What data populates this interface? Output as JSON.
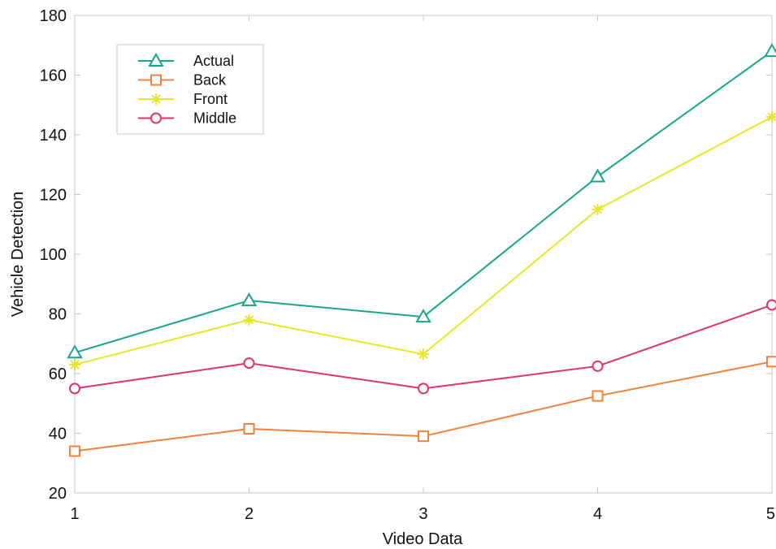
{
  "chart_data": {
    "type": "line",
    "title": "",
    "xlabel": "Video Data",
    "ylabel": "Vehicle Detection",
    "x": [
      1,
      2,
      3,
      4,
      5
    ],
    "xlim": [
      1,
      5
    ],
    "ylim": [
      20,
      180
    ],
    "xticks": [
      "1",
      "2",
      "3",
      "4",
      "5"
    ],
    "yticks": [
      "20",
      "40",
      "60",
      "80",
      "100",
      "120",
      "140",
      "160",
      "180"
    ],
    "grid": false,
    "legend_position": "top-left",
    "series": [
      {
        "name": "Actual",
        "color": "#1aa68a",
        "marker": "triangle",
        "values": [
          67,
          84.5,
          79,
          126,
          168
        ]
      },
      {
        "name": "Back",
        "color": "#f0823e",
        "marker": "square",
        "values": [
          34,
          41.5,
          39,
          52.5,
          64
        ]
      },
      {
        "name": "Front",
        "color": "#e6e62a",
        "marker": "star",
        "values": [
          63,
          78,
          66.5,
          115,
          146
        ]
      },
      {
        "name": "Middle",
        "color": "#e0336e",
        "marker": "circle",
        "values": [
          55,
          63.5,
          55,
          62.5,
          83
        ]
      }
    ]
  }
}
